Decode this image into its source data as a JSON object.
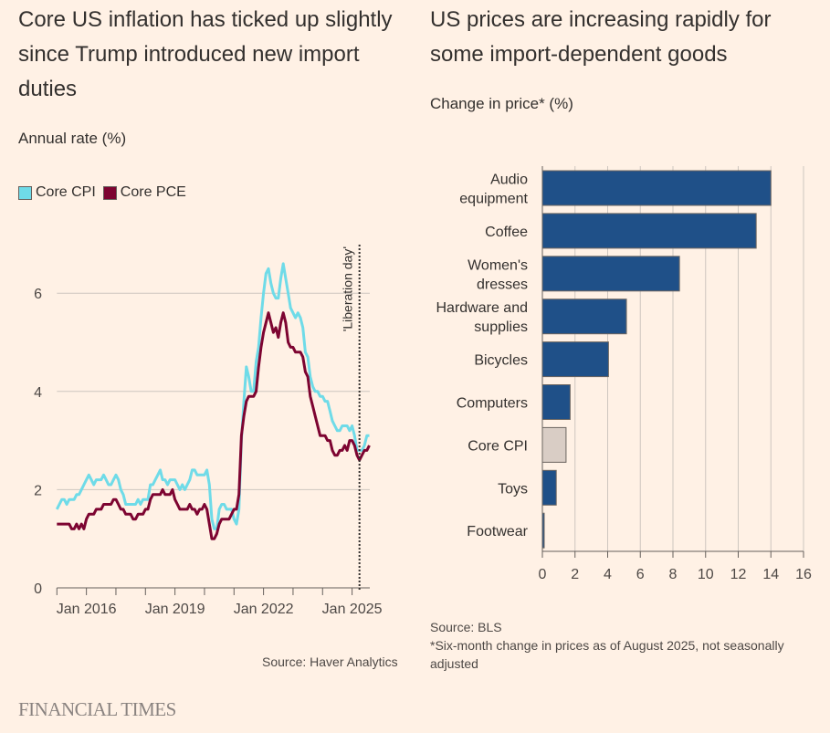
{
  "left": {
    "title": "Core US inflation has ticked up slightly since Trump introduced new import duties",
    "subtitle": "Annual rate (%)",
    "source": "Source: Haver Analytics"
  },
  "right": {
    "title": "US prices are increasing rapidly for some import-dependent goods",
    "subtitle": "Change in price* (%)",
    "source": "Source: BLS",
    "footnote": "*Six-month change in prices as of August 2025, not seasonally adjusted"
  },
  "brand": "FINANCIAL TIMES",
  "chart_data": [
    {
      "type": "line",
      "title": "Core US inflation has ticked up slightly since Trump introduced new import duties",
      "ylabel": "Annual rate (%)",
      "x_start": "2015-01",
      "x_frequency": "monthly",
      "x_ticks": [
        "Jan 2016",
        "Jan 2019",
        "Jan 2022",
        "Jan 2025"
      ],
      "ylim": [
        0,
        7
      ],
      "y_ticks": [
        0,
        2,
        4,
        6
      ],
      "grid": true,
      "legend": "top-left",
      "annotation": {
        "label": "'Liberation day'",
        "date": "2025-04"
      },
      "series": [
        {
          "name": "Core CPI",
          "color": "#6fdbe8",
          "values": [
            1.6,
            1.7,
            1.8,
            1.8,
            1.7,
            1.8,
            1.8,
            1.8,
            1.9,
            1.9,
            2.0,
            2.1,
            2.2,
            2.3,
            2.2,
            2.1,
            2.2,
            2.2,
            2.2,
            2.3,
            2.2,
            2.1,
            2.1,
            2.2,
            2.3,
            2.2,
            2.0,
            1.9,
            1.7,
            1.7,
            1.7,
            1.7,
            1.7,
            1.8,
            1.7,
            1.8,
            1.8,
            1.8,
            2.1,
            2.1,
            2.2,
            2.3,
            2.4,
            2.2,
            2.2,
            2.1,
            2.2,
            2.2,
            2.2,
            2.1,
            2.0,
            2.1,
            2.0,
            2.1,
            2.2,
            2.4,
            2.4,
            2.3,
            2.3,
            2.3,
            2.3,
            2.4,
            2.1,
            1.4,
            1.2,
            1.2,
            1.6,
            1.7,
            1.7,
            1.6,
            1.6,
            1.6,
            1.4,
            1.3,
            1.6,
            3.0,
            3.8,
            4.5,
            4.3,
            4.0,
            4.0,
            4.6,
            4.9,
            5.5,
            6.0,
            6.4,
            6.5,
            6.2,
            6.0,
            5.9,
            5.9,
            6.3,
            6.6,
            6.3,
            6.0,
            5.7,
            5.6,
            5.5,
            5.6,
            5.5,
            5.3,
            4.8,
            4.7,
            4.3,
            4.1,
            4.0,
            4.0,
            3.9,
            3.9,
            3.8,
            3.8,
            3.6,
            3.4,
            3.3,
            3.2,
            3.2,
            3.3,
            3.3,
            3.3,
            3.2,
            3.3,
            3.1,
            2.8,
            2.8,
            2.8,
            2.9,
            3.1,
            3.1
          ]
        },
        {
          "name": "Core PCE",
          "color": "#7d0431",
          "values": [
            1.3,
            1.3,
            1.3,
            1.3,
            1.3,
            1.3,
            1.2,
            1.2,
            1.3,
            1.2,
            1.3,
            1.2,
            1.4,
            1.5,
            1.5,
            1.5,
            1.6,
            1.6,
            1.6,
            1.7,
            1.7,
            1.7,
            1.7,
            1.8,
            1.8,
            1.7,
            1.6,
            1.6,
            1.5,
            1.5,
            1.5,
            1.4,
            1.4,
            1.5,
            1.5,
            1.5,
            1.6,
            1.6,
            1.8,
            1.9,
            1.9,
            1.9,
            1.9,
            2.0,
            1.9,
            1.9,
            1.9,
            2.0,
            1.8,
            1.7,
            1.6,
            1.6,
            1.6,
            1.6,
            1.7,
            1.6,
            1.6,
            1.5,
            1.6,
            1.6,
            1.7,
            1.6,
            1.3,
            1.0,
            1.0,
            1.1,
            1.3,
            1.4,
            1.4,
            1.4,
            1.4,
            1.5,
            1.6,
            1.6,
            1.9,
            3.1,
            3.5,
            3.8,
            3.9,
            3.9,
            3.9,
            4.0,
            4.5,
            4.9,
            5.2,
            5.4,
            5.6,
            5.4,
            5.2,
            5.3,
            5.1,
            5.4,
            5.6,
            5.4,
            5.0,
            4.9,
            4.9,
            4.8,
            4.8,
            4.8,
            4.7,
            4.4,
            4.3,
            3.9,
            3.7,
            3.5,
            3.3,
            3.1,
            3.1,
            3.1,
            3.0,
            3.0,
            2.8,
            2.7,
            2.7,
            2.8,
            2.8,
            2.9,
            2.8,
            3.0,
            3.0,
            2.9,
            2.7,
            2.6,
            2.7,
            2.8,
            2.8,
            2.9
          ]
        }
      ]
    },
    {
      "type": "bar",
      "orientation": "horizontal",
      "title": "US prices are increasing rapidly for some import-dependent goods",
      "xlabel": "Change in price* (%)",
      "xlim": [
        0,
        16
      ],
      "x_ticks": [
        0,
        2,
        4,
        6,
        8,
        10,
        12,
        14,
        16
      ],
      "grid": true,
      "categories": [
        [
          "Audio",
          "equipment"
        ],
        [
          "Coffee"
        ],
        [
          "Women's",
          "dresses"
        ],
        [
          "Hardware and",
          "supplies"
        ],
        [
          "Bicycles"
        ],
        [
          "Computers"
        ],
        [
          "Core CPI"
        ],
        [
          "Toys"
        ],
        [
          "Footwear"
        ]
      ],
      "values": [
        14.0,
        13.1,
        8.4,
        5.15,
        4.05,
        1.7,
        1.45,
        0.85,
        0.1
      ],
      "colors": {
        "default": "#1f5088",
        "highlight": "#d9cdc5",
        "highlight_category": "Core CPI"
      }
    }
  ]
}
